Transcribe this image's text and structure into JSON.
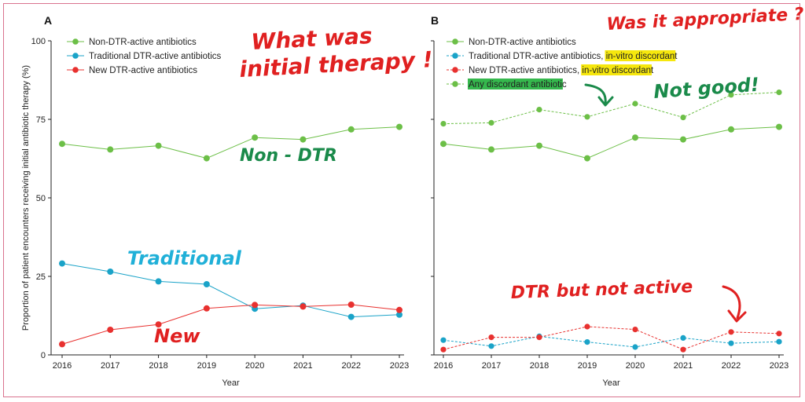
{
  "colors": {
    "green": "#6cbf47",
    "blue": "#1aa3c8",
    "red": "#e8312f",
    "ink_red": "#e02020",
    "ink_green": "#1a8a4a",
    "ink_blue": "#20b0d8",
    "highlight": "#f5e600",
    "highlight_green": "#1fb03a",
    "frame": "#d9738f"
  },
  "chart_data": [
    {
      "panel": "A",
      "type": "line",
      "xlabel": "Year",
      "ylabel": "Proportion of patient encounters receiving initial antibiotic therapy (%)",
      "ylim": [
        0,
        100
      ],
      "yticks": [
        "0",
        "25",
        "50",
        "75",
        "100"
      ],
      "categories": [
        "2016",
        "2017",
        "2018",
        "2019",
        "2020",
        "2021",
        "2022",
        "2023"
      ],
      "series": [
        {
          "name": "Non-DTR-active antibiotics",
          "color": "green",
          "dashed": false,
          "values": [
            67.2,
            65.4,
            66.6,
            62.6,
            69.2,
            68.6,
            71.8,
            72.6
          ]
        },
        {
          "name": "Traditional DTR-active antibiotics",
          "color": "blue",
          "dashed": false,
          "values": [
            29.1,
            26.5,
            23.4,
            22.5,
            14.7,
            15.7,
            12.1,
            12.8
          ]
        },
        {
          "name": "New DTR-active antibiotics",
          "color": "red",
          "dashed": false,
          "values": [
            3.4,
            8.0,
            9.7,
            14.8,
            15.9,
            15.4,
            16.0,
            14.3
          ]
        }
      ],
      "legend": [
        {
          "label": "Non-DTR-active antibiotics",
          "color": "green"
        },
        {
          "label": "Traditional DTR-active antibiotics",
          "color": "blue"
        },
        {
          "label": "New DTR-active antibiotics",
          "color": "red"
        }
      ]
    },
    {
      "panel": "B",
      "type": "line",
      "xlabel": "Year",
      "ylim": [
        0,
        100
      ],
      "categories": [
        "2016",
        "2017",
        "2018",
        "2019",
        "2020",
        "2021",
        "2022",
        "2023"
      ],
      "series": [
        {
          "name": "Non-DTR-active antibiotics",
          "color": "green",
          "dashed": false,
          "values": [
            67.2,
            65.4,
            66.6,
            62.6,
            69.2,
            68.6,
            71.8,
            72.6
          ]
        },
        {
          "name": "Any discordant antibiotic",
          "color": "green",
          "dashed": true,
          "values": [
            73.6,
            73.9,
            78.1,
            75.8,
            80.0,
            75.6,
            82.8,
            83.6
          ]
        },
        {
          "name": "Traditional DTR-active antibiotics, in-vitro discordant",
          "color": "blue",
          "dashed": true,
          "values": [
            4.7,
            2.8,
            5.9,
            4.1,
            2.5,
            5.4,
            3.7,
            4.2
          ]
        },
        {
          "name": "New DTR-active antibiotics, in-vitro discordant",
          "color": "red",
          "dashed": true,
          "values": [
            1.7,
            5.6,
            5.6,
            9.0,
            8.1,
            1.7,
            7.3,
            6.8
          ]
        }
      ],
      "legend": [
        {
          "label": "Non-DTR-active antibiotics",
          "color": "green",
          "dashed": false,
          "hl": "",
          "tail": ""
        },
        {
          "label": "Traditional DTR-active antibiotics,",
          "color": "blue",
          "dashed": true,
          "hl": " in-vitro discordan",
          "tail": "t"
        },
        {
          "label": "New DTR-active antibiotics,",
          "color": "red",
          "dashed": true,
          "hl": " in-vitro discordan",
          "tail": "t"
        },
        {
          "label": "",
          "color": "green",
          "dashed": true,
          "hl": "Any discordant antibioti",
          "tail": "c",
          "hl_green": true
        }
      ]
    }
  ],
  "annotations": {
    "a_question": [
      "What was",
      "initial therapy !"
    ],
    "a_nondtr": "Non - DTR",
    "a_traditional": "Traditional",
    "a_new": "New",
    "b_question": "Was it appropriate ?",
    "b_notgood": "Not good!",
    "b_dtr": "DTR but not active"
  }
}
